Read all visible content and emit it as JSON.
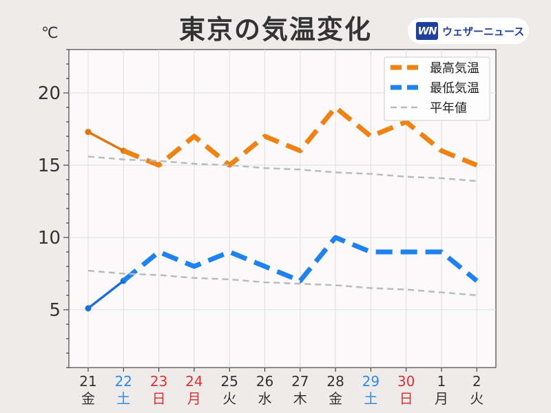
{
  "header": {
    "title": "東京の気温変化",
    "unit": "℃",
    "logo_mark": "WN",
    "logo_text": "ウェザーニュース"
  },
  "colors": {
    "high": "#f08214",
    "low": "#1e82f0",
    "normal": "#bbbbbb",
    "saturday": "#2d8ce6",
    "holiday": "#dc3232",
    "weekday": "#333333"
  },
  "chart_data": {
    "type": "line",
    "categories": [
      "21",
      "22",
      "23",
      "24",
      "25",
      "26",
      "27",
      "28",
      "29",
      "30",
      "1",
      "2"
    ],
    "weekdays": [
      "金",
      "土",
      "日",
      "月",
      "火",
      "水",
      "木",
      "金",
      "土",
      "日",
      "月",
      "火"
    ],
    "day_types": [
      "weekday",
      "saturday",
      "holiday",
      "holiday",
      "weekday",
      "weekday",
      "weekday",
      "weekday",
      "saturday",
      "holiday",
      "weekday",
      "weekday"
    ],
    "ylim": [
      1,
      23
    ],
    "yticks": [
      5,
      10,
      15,
      20
    ],
    "ytick_labels": [
      "5",
      "10",
      "15",
      "20"
    ],
    "grid": true,
    "legend_position": "top-right",
    "observed_until_index": 1,
    "series": [
      {
        "name": "最高気温",
        "key": "high",
        "style": "dashed-thick",
        "values": [
          17.3,
          16,
          15,
          17,
          15,
          17,
          16,
          19,
          17,
          18,
          16,
          15
        ]
      },
      {
        "name": "最低気温",
        "key": "low",
        "style": "dashed-thick",
        "values": [
          5.1,
          7,
          9,
          8,
          9,
          8,
          7,
          10,
          9,
          9,
          9,
          7
        ]
      },
      {
        "name": "平年値",
        "key": "normal",
        "style": "dashed-thin",
        "values": [
          15.6,
          15.4,
          15.3,
          15.1,
          15.0,
          14.8,
          14.7,
          14.5,
          14.4,
          14.2,
          14.1,
          13.9
        ]
      },
      {
        "name": "平年値",
        "key": "normal_low",
        "style": "dashed-thin",
        "values": [
          7.7,
          7.5,
          7.4,
          7.2,
          7.1,
          6.9,
          6.8,
          6.7,
          6.5,
          6.4,
          6.2,
          6.0
        ]
      }
    ]
  }
}
